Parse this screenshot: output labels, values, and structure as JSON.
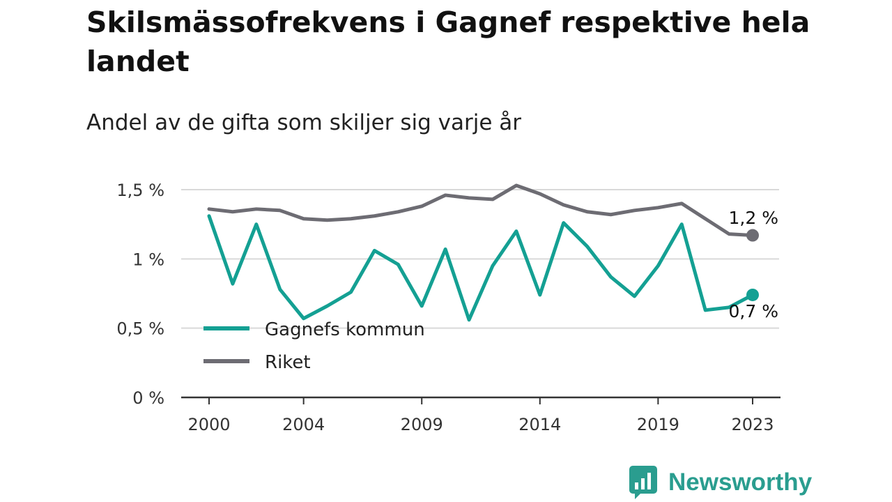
{
  "title": "Skilsmässofrekvens i Gagnef respektive hela landet",
  "subtitle": "Andel av de gifta som skiljer sig varje år",
  "brand": {
    "name": "Newsworthy",
    "icon": "newsworthy-logo-icon",
    "color": "#2a9d8f"
  },
  "colors": {
    "gagnef": "#14a093",
    "riket": "#6d6c73",
    "grid": "#d9d9d9",
    "axis": "#333333"
  },
  "chart_data": {
    "type": "line",
    "title": "Skilsmässofrekvens i Gagnef respektive hela landet",
    "subtitle": "Andel av de gifta som skiljer sig varje år",
    "x": [
      2000,
      2001,
      2002,
      2003,
      2004,
      2005,
      2006,
      2007,
      2008,
      2009,
      2010,
      2011,
      2012,
      2013,
      2014,
      2015,
      2016,
      2017,
      2018,
      2019,
      2020,
      2021,
      2022,
      2023
    ],
    "x_ticks": [
      "2000",
      "2004",
      "2009",
      "2014",
      "2019",
      "2023"
    ],
    "y_ticks": [
      "0 %",
      "0,5 %",
      "1 %",
      "1,5 %"
    ],
    "y_tick_values": [
      0,
      0.5,
      1,
      1.5
    ],
    "ylim": [
      0,
      1.5
    ],
    "grid": true,
    "legend_position": "bottom-left",
    "series": [
      {
        "name": "Gagnefs kommun",
        "values": [
          1.31,
          0.82,
          1.25,
          0.78,
          0.57,
          0.66,
          0.76,
          1.06,
          0.96,
          0.66,
          1.07,
          0.56,
          0.95,
          1.2,
          0.74,
          1.26,
          1.09,
          0.87,
          0.73,
          0.95,
          1.25,
          0.63,
          0.65,
          0.74
        ],
        "end_label": "0,7 %"
      },
      {
        "name": "Riket",
        "values": [
          1.36,
          1.34,
          1.36,
          1.35,
          1.29,
          1.28,
          1.29,
          1.31,
          1.34,
          1.38,
          1.46,
          1.44,
          1.43,
          1.53,
          1.47,
          1.39,
          1.34,
          1.32,
          1.35,
          1.37,
          1.4,
          1.29,
          1.18,
          1.17
        ],
        "end_label": "1,2 %"
      }
    ]
  }
}
